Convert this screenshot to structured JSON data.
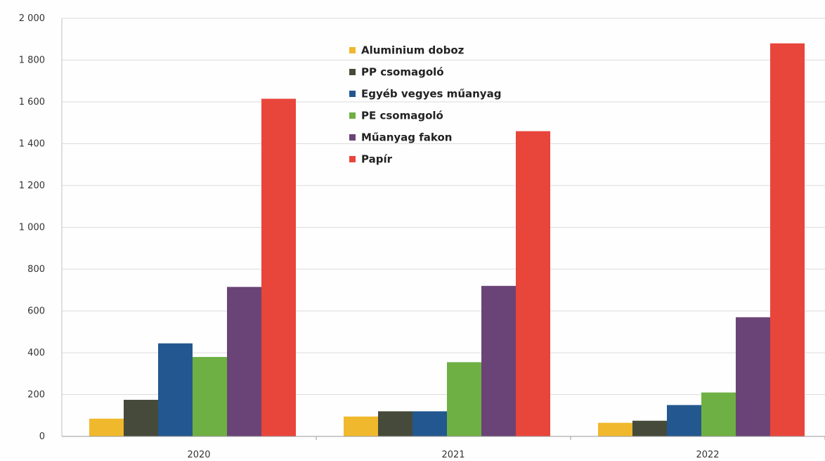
{
  "chart_data": {
    "type": "bar",
    "categories": [
      "2020",
      "2021",
      "2022"
    ],
    "series": [
      {
        "name": "Aluminium doboz",
        "color": "#f0b82c",
        "values": [
          85,
          95,
          65
        ]
      },
      {
        "name": "PP csomagoló",
        "color": "#464a3a",
        "values": [
          175,
          120,
          75
        ]
      },
      {
        "name": "Egyéb vegyes műanyag",
        "color": "#23578f",
        "values": [
          445,
          120,
          150
        ]
      },
      {
        "name": "PE csomagoló",
        "color": "#6eb043",
        "values": [
          380,
          355,
          210
        ]
      },
      {
        "name": "Műanyag fakon",
        "color": "#6a4476",
        "values": [
          715,
          720,
          570
        ]
      },
      {
        "name": "Papír",
        "color": "#e8453b",
        "values": [
          1615,
          1460,
          1880
        ]
      }
    ],
    "y_ticks": [
      "0",
      "200",
      "400",
      "600",
      "800",
      "1 000",
      "1 200",
      "1 400",
      "1 600",
      "1 800",
      "2 000"
    ],
    "ylim": [
      0,
      2000
    ],
    "grid": true,
    "legend_position": "top-center",
    "title": "",
    "xlabel": "",
    "ylabel": ""
  }
}
